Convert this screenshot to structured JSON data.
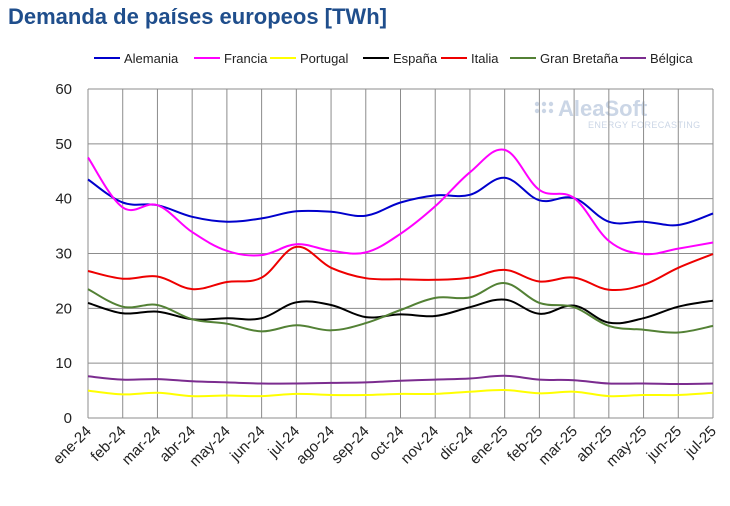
{
  "chart_data": {
    "type": "line",
    "title": "Demanda de países europeos [TWh]",
    "xlabel": "",
    "ylabel": "",
    "ylim": [
      0,
      60
    ],
    "yticks": [
      0,
      10,
      20,
      30,
      40,
      50,
      60
    ],
    "grid": true,
    "legend_position": "top",
    "categories": [
      "ene-24",
      "feb-24",
      "mar-24",
      "abr-24",
      "may-24",
      "jun-24",
      "jul-24",
      "ago-24",
      "sep-24",
      "oct-24",
      "nov-24",
      "dic-24",
      "ene-25",
      "feb-25",
      "mar-25",
      "abr-25",
      "may-25",
      "jun-25",
      "jul-25"
    ],
    "series": [
      {
        "name": "Alemania",
        "color": "#0000cc",
        "values": [
          43.5,
          39.3,
          38.8,
          36.7,
          35.8,
          36.4,
          37.7,
          37.6,
          36.9,
          39.3,
          40.6,
          40.7,
          43.8,
          39.7,
          40.1,
          35.8,
          35.8,
          35.2,
          37.3
        ]
      },
      {
        "name": "Francia",
        "color": "#ff00ff",
        "values": [
          47.5,
          38.4,
          38.8,
          33.9,
          30.5,
          29.7,
          31.7,
          30.5,
          30.2,
          33.6,
          38.6,
          44.8,
          48.9,
          41.6,
          40.1,
          32.3,
          29.9,
          30.9,
          32.0
        ]
      },
      {
        "name": "Portugal",
        "color": "#ffff00",
        "values": [
          5.0,
          4.3,
          4.6,
          4.0,
          4.1,
          4.0,
          4.4,
          4.2,
          4.2,
          4.4,
          4.4,
          4.8,
          5.1,
          4.5,
          4.8,
          4.0,
          4.2,
          4.2,
          4.6
        ]
      },
      {
        "name": "España",
        "color": "#000000",
        "values": [
          21.0,
          19.1,
          19.4,
          18.0,
          18.2,
          18.2,
          21.1,
          20.6,
          18.4,
          18.9,
          18.6,
          20.2,
          21.6,
          19.0,
          20.5,
          17.4,
          18.2,
          20.3,
          21.4
        ]
      },
      {
        "name": "Italia",
        "color": "#ee0000",
        "values": [
          26.8,
          25.4,
          25.8,
          23.5,
          24.8,
          25.6,
          31.2,
          27.4,
          25.5,
          25.3,
          25.2,
          25.6,
          27.0,
          24.9,
          25.6,
          23.4,
          24.3,
          27.4,
          29.9
        ]
      },
      {
        "name": "Gran Bretaña",
        "color": "#538135",
        "values": [
          23.5,
          20.3,
          20.6,
          18.0,
          17.2,
          15.8,
          16.9,
          16.0,
          17.3,
          19.7,
          21.9,
          22.0,
          24.6,
          21.0,
          20.2,
          16.8,
          16.1,
          15.6,
          16.8
        ]
      },
      {
        "name": "Bélgica",
        "color": "#7b2c8f",
        "values": [
          7.6,
          7.0,
          7.1,
          6.7,
          6.5,
          6.3,
          6.3,
          6.4,
          6.5,
          6.8,
          7.0,
          7.2,
          7.7,
          7.0,
          6.9,
          6.3,
          6.3,
          6.2,
          6.3
        ]
      }
    ]
  },
  "watermark": {
    "brand": "AleaSoft",
    "tagline": "ENERGY FORECASTING"
  }
}
